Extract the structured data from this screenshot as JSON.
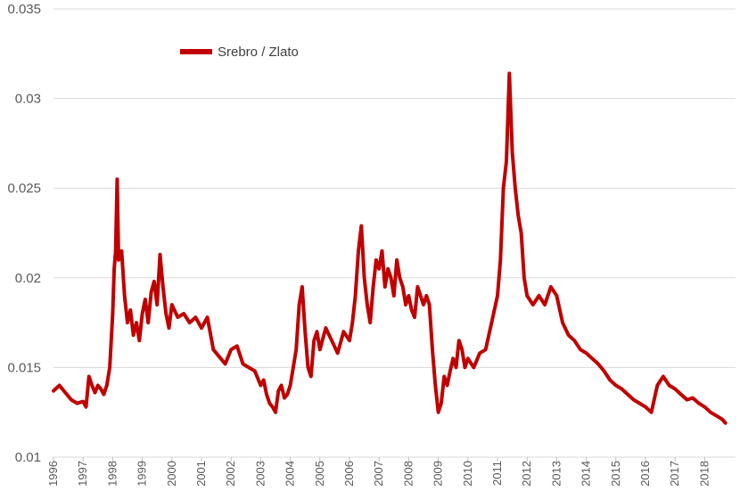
{
  "chart_data": {
    "type": "line",
    "title": "",
    "xlabel": "",
    "ylabel": "",
    "ylim": [
      0.01,
      0.035
    ],
    "xlim": [
      1996,
      2018.7
    ],
    "y_ticks": [
      "0.01",
      "0.015",
      "0.02",
      "0.025",
      "0.03",
      "0.035"
    ],
    "x_ticks": [
      "1996",
      "1997",
      "1998",
      "1999",
      "2000",
      "2001",
      "2002",
      "2003",
      "2004",
      "2005",
      "2006",
      "2007",
      "2008",
      "2009",
      "2010",
      "2011",
      "2012",
      "2013",
      "2014",
      "2015",
      "2016",
      "2017",
      "2018"
    ],
    "grid": true,
    "legend_position": "top-left",
    "series": [
      {
        "name": "Srebro  / Zlato",
        "color": "#c00000",
        "x": [
          1996.0,
          1996.2,
          1996.4,
          1996.6,
          1996.8,
          1997.0,
          1997.1,
          1997.2,
          1997.3,
          1997.4,
          1997.5,
          1997.6,
          1997.7,
          1997.8,
          1997.9,
          1998.0,
          1998.05,
          1998.1,
          1998.15,
          1998.2,
          1998.3,
          1998.4,
          1998.5,
          1998.6,
          1998.7,
          1998.8,
          1998.9,
          1999.0,
          1999.1,
          1999.2,
          1999.3,
          1999.4,
          1999.5,
          1999.6,
          1999.7,
          1999.8,
          1999.9,
          2000.0,
          2000.2,
          2000.4,
          2000.6,
          2000.8,
          2001.0,
          2001.2,
          2001.4,
          2001.6,
          2001.8,
          2002.0,
          2002.2,
          2002.4,
          2002.6,
          2002.8,
          2003.0,
          2003.1,
          2003.2,
          2003.3,
          2003.4,
          2003.5,
          2003.6,
          2003.7,
          2003.8,
          2003.9,
          2004.0,
          2004.1,
          2004.2,
          2004.3,
          2004.4,
          2004.5,
          2004.6,
          2004.7,
          2004.8,
          2004.9,
          2005.0,
          2005.2,
          2005.4,
          2005.6,
          2005.8,
          2006.0,
          2006.1,
          2006.2,
          2006.3,
          2006.4,
          2006.5,
          2006.6,
          2006.7,
          2006.8,
          2006.9,
          2007.0,
          2007.1,
          2007.2,
          2007.3,
          2007.4,
          2007.5,
          2007.6,
          2007.7,
          2007.8,
          2007.9,
          2008.0,
          2008.1,
          2008.2,
          2008.3,
          2008.4,
          2008.5,
          2008.6,
          2008.7,
          2008.8,
          2008.9,
          2009.0,
          2009.1,
          2009.2,
          2009.3,
          2009.4,
          2009.5,
          2009.6,
          2009.7,
          2009.8,
          2009.9,
          2010.0,
          2010.2,
          2010.4,
          2010.6,
          2010.8,
          2011.0,
          2011.1,
          2011.2,
          2011.3,
          2011.4,
          2011.5,
          2011.6,
          2011.7,
          2011.8,
          2011.9,
          2012.0,
          2012.2,
          2012.4,
          2012.6,
          2012.8,
          2013.0,
          2013.2,
          2013.4,
          2013.6,
          2013.8,
          2014.0,
          2014.2,
          2014.4,
          2014.6,
          2014.8,
          2015.0,
          2015.2,
          2015.4,
          2015.6,
          2015.8,
          2016.0,
          2016.2,
          2016.4,
          2016.6,
          2016.8,
          2017.0,
          2017.2,
          2017.4,
          2017.6,
          2017.8,
          2018.0,
          2018.2,
          2018.4,
          2018.6,
          2018.7
        ],
        "values": [
          0.0137,
          0.014,
          0.0136,
          0.0132,
          0.013,
          0.0131,
          0.0128,
          0.0145,
          0.014,
          0.0136,
          0.014,
          0.0138,
          0.0135,
          0.014,
          0.015,
          0.018,
          0.0205,
          0.0215,
          0.0255,
          0.021,
          0.0215,
          0.019,
          0.0175,
          0.0182,
          0.0168,
          0.0175,
          0.0165,
          0.018,
          0.0188,
          0.0175,
          0.0192,
          0.0198,
          0.0185,
          0.0213,
          0.0195,
          0.018,
          0.0172,
          0.0185,
          0.0178,
          0.018,
          0.0175,
          0.0178,
          0.0172,
          0.0178,
          0.016,
          0.0156,
          0.0152,
          0.016,
          0.0162,
          0.0152,
          0.015,
          0.0148,
          0.014,
          0.0143,
          0.0135,
          0.013,
          0.0128,
          0.0125,
          0.0137,
          0.014,
          0.0133,
          0.0135,
          0.014,
          0.015,
          0.016,
          0.0185,
          0.0195,
          0.017,
          0.015,
          0.0145,
          0.0165,
          0.017,
          0.016,
          0.0172,
          0.0165,
          0.0158,
          0.017,
          0.0165,
          0.0175,
          0.019,
          0.0215,
          0.0229,
          0.02,
          0.0185,
          0.0175,
          0.0195,
          0.021,
          0.0205,
          0.0215,
          0.0195,
          0.0205,
          0.02,
          0.019,
          0.021,
          0.02,
          0.0195,
          0.0185,
          0.019,
          0.0182,
          0.0178,
          0.0195,
          0.019,
          0.0185,
          0.019,
          0.0185,
          0.016,
          0.014,
          0.0125,
          0.013,
          0.0145,
          0.014,
          0.0148,
          0.0155,
          0.015,
          0.0165,
          0.016,
          0.015,
          0.0155,
          0.015,
          0.0158,
          0.016,
          0.0175,
          0.019,
          0.021,
          0.025,
          0.0265,
          0.0314,
          0.027,
          0.025,
          0.0235,
          0.0225,
          0.02,
          0.019,
          0.0185,
          0.019,
          0.0185,
          0.0195,
          0.019,
          0.0175,
          0.0168,
          0.0165,
          0.016,
          0.0158,
          0.0155,
          0.0152,
          0.0148,
          0.0143,
          0.014,
          0.0138,
          0.0135,
          0.0132,
          0.013,
          0.0128,
          0.0125,
          0.014,
          0.0145,
          0.014,
          0.0138,
          0.0135,
          0.0132,
          0.0133,
          0.013,
          0.0128,
          0.0125,
          0.0123,
          0.0121,
          0.0119
        ]
      }
    ]
  }
}
